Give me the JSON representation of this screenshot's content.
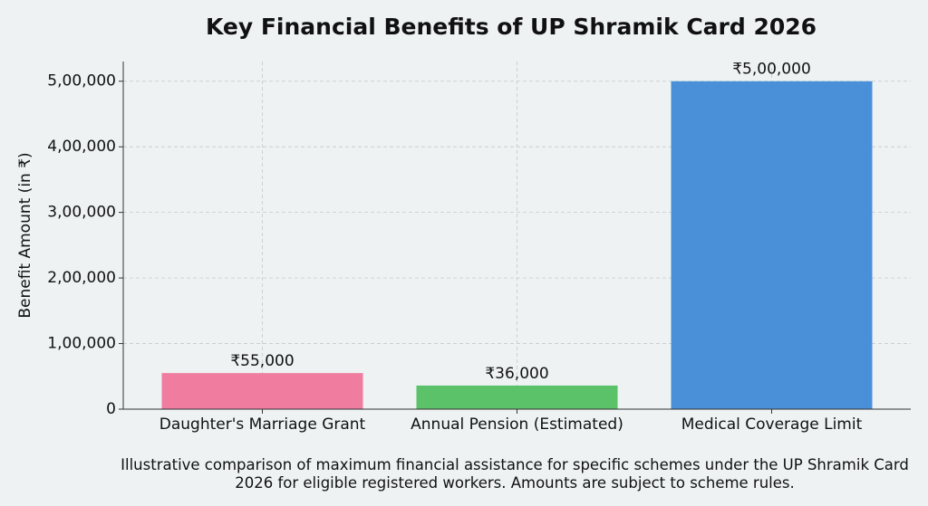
{
  "chart_data": {
    "type": "bar",
    "title": "Key Financial Benefits of UP Shramik Card 2026",
    "y_label": "Benefit Amount (in ₹)",
    "categories": [
      "Daughter's Marriage Grant",
      "Annual Pension (Estimated)",
      "Medical Coverage Limit"
    ],
    "values": [
      55000,
      36000,
      500000
    ],
    "value_labels": [
      "₹55,000",
      "₹36,000",
      "₹5,00,000"
    ],
    "colors": [
      "#f07ca0",
      "#5cc26a",
      "#4a90d9"
    ],
    "ylim": [
      0,
      530000
    ],
    "yticks": [
      0,
      {
        "value": 100000,
        "label": "1,00,000"
      },
      {
        "value": 200000,
        "label": "2,00,000"
      },
      {
        "value": 300000,
        "label": "3,00,000"
      },
      {
        "value": 400000,
        "label": "4,00,000"
      },
      {
        "value": 500000,
        "label": "5,00,000"
      }
    ],
    "grid": true,
    "caption": "Illustrative comparison of maximum financial assistance for specific schemes under the UP Shramik Card 2026 for eligible registered workers. Amounts are subject to scheme rules."
  }
}
